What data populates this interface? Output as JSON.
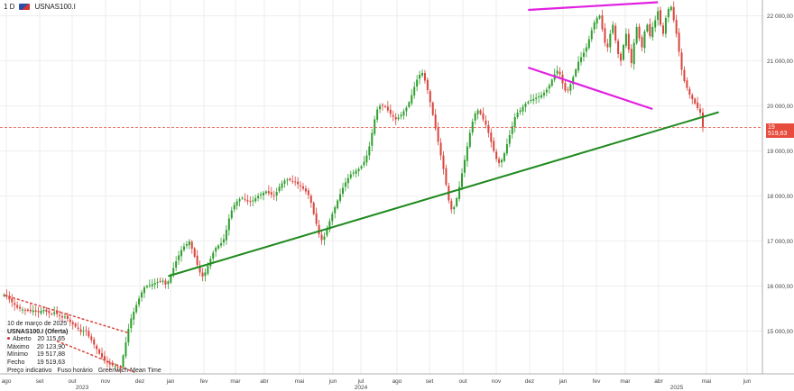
{
  "header": {
    "timeframe": "1 D",
    "symbol": "USNAS100.I"
  },
  "info": {
    "date": "10 de março de 2025",
    "symbol_line": "USNAS100.I (Oferta)",
    "rows": [
      {
        "label": "Aberto",
        "value": "20 115,65"
      },
      {
        "label": "Máximo",
        "value": "20 123,90"
      },
      {
        "label": "Mínimo",
        "value": "19 517,88"
      },
      {
        "label": "Fecho",
        "value": "19 519,63"
      }
    ],
    "footer": [
      "Preço indicativo",
      "Fuso horário",
      "Greenwich Mean Time"
    ]
  },
  "current_price_label": "19 519,63",
  "colors": {
    "up": "#2e9e2e",
    "down": "#d9453d",
    "support": "#1e8a1e",
    "wedge": "#e020e0",
    "price_line": "#e74c3c"
  },
  "chart_data": {
    "type": "candlestick",
    "yticks": [
      "22 000,00",
      "21 000,00",
      "20 000,00",
      "19 000,00",
      "18 000,00",
      "17 000,00",
      "16 000,00",
      "15 000,00"
    ],
    "ytick_values": [
      22000,
      21000,
      20000,
      19000,
      18000,
      17000,
      16000,
      15000
    ],
    "ylim": [
      14050,
      22350
    ],
    "xticks": [
      "ago",
      "set",
      "out",
      "nov",
      "dez",
      "jan",
      "fev",
      "mar",
      "abr",
      "mai",
      "jun",
      "jul",
      "ago",
      "set",
      "out",
      "nov",
      "dez",
      "jan",
      "fev",
      "mar",
      "abr",
      "mai",
      "jun"
    ],
    "years": [
      "2023",
      "2024",
      "2025"
    ],
    "current_price": 19519.63,
    "x_count": 287,
    "closes": [
      15810,
      15760,
      15700,
      15640,
      15580,
      15520,
      15500,
      15480,
      15470,
      15450,
      15440,
      15460,
      15430,
      15420,
      15450,
      15470,
      15430,
      15400,
      15380,
      15420,
      15380,
      15340,
      15300,
      15320,
      15270,
      15200,
      15150,
      15100,
      15050,
      14980,
      15000,
      15020,
      14880,
      14800,
      14700,
      14600,
      14500,
      14420,
      14350,
      14300,
      14260,
      14240,
      14220,
      14200,
      14180,
      14460,
      14750,
      15050,
      15280,
      15430,
      15580,
      15720,
      15860,
      15970,
      16000,
      16020,
      16040,
      16070,
      16090,
      16110,
      16120,
      16030,
      16100,
      16250,
      16400,
      16550,
      16680,
      16800,
      16880,
      16930,
      16990,
      16830,
      16650,
      16470,
      16300,
      16210,
      16300,
      16450,
      16600,
      16740,
      16850,
      16900,
      16950,
      17040,
      17250,
      17500,
      17680,
      17800,
      17880,
      17930,
      17960,
      17920,
      17880,
      17870,
      17900,
      17950,
      18000,
      18040,
      18070,
      18100,
      18060,
      18030,
      18010,
      18090,
      18200,
      18280,
      18340,
      18360,
      18350,
      18320,
      18300,
      18260,
      18220,
      18160,
      18100,
      18020,
      17850,
      17600,
      17380,
      17150,
      17020,
      17100,
      17270,
      17440,
      17600,
      17750,
      17900,
      18040,
      18180,
      18300,
      18400,
      18480,
      18520,
      18560,
      18600,
      18660,
      18760,
      18900,
      19100,
      19400,
      19700,
      19920,
      20000,
      20010,
      19980,
      19900,
      19820,
      19760,
      19700,
      19740,
      19800,
      19880,
      19960,
      20080,
      20240,
      20420,
      20580,
      20690,
      20730,
      20560,
      20350,
      20080,
      19800,
      19500,
      19200,
      18900,
      18600,
      18250,
      17900,
      17700,
      17750,
      17950,
      18200,
      18500,
      18800,
      19100,
      19400,
      19650,
      19830,
      19900,
      19820,
      19700,
      19580,
      19400,
      19200,
      19000,
      18820,
      18730,
      18800,
      18950,
      19150,
      19350,
      19550,
      19750,
      19850,
      19900,
      19980,
      20050,
      20090,
      20130,
      20150,
      20180,
      20210,
      20240,
      20290,
      20360,
      20460,
      20580,
      20700,
      20780,
      20700,
      20500,
      20340,
      20350,
      20480,
      20640,
      20810,
      20980,
      21080,
      21180,
      21300,
      21480,
      21680,
      21850,
      21950,
      22000,
      21700,
      21400,
      21300,
      21600,
      21800,
      21450,
      21150,
      21000,
      21350,
      21600,
      21250,
      20950,
      21400,
      21750,
      21500,
      21300,
      21650,
      21800,
      21550,
      21750,
      21900,
      22100,
      21800,
      21600,
      21950,
      22150,
      22200,
      21900,
      21600,
      21200,
      20800,
      20550,
      20400,
      20250,
      20150,
      20050,
      19950,
      19850,
      19520
    ],
    "annotations": [
      {
        "name": "support-line",
        "color": "#1e8a1e",
        "points": [
          [
            62,
            16220
          ],
          [
            244,
            17010
          ],
          [
            145,
            17800
          ],
          [
            270,
            19860
          ]
        ]
      },
      {
        "name": "wedge-upper",
        "color": "#e020e0",
        "points": [
          [
            198,
            22130
          ],
          [
            247,
            22300
          ]
        ]
      },
      {
        "name": "wedge-lower",
        "color": "#e020e0",
        "points": [
          [
            198,
            20850
          ],
          [
            245,
            19930
          ]
        ]
      },
      {
        "name": "descending-channel-upper",
        "color": "#d9453d",
        "dashed": true,
        "points": [
          [
            0,
            15800
          ],
          [
            47,
            14960
          ]
        ]
      },
      {
        "name": "descending-channel-lower",
        "color": "#d9453d",
        "dashed": true,
        "points": [
          [
            20,
            14780
          ],
          [
            50,
            14070
          ]
        ]
      }
    ]
  }
}
